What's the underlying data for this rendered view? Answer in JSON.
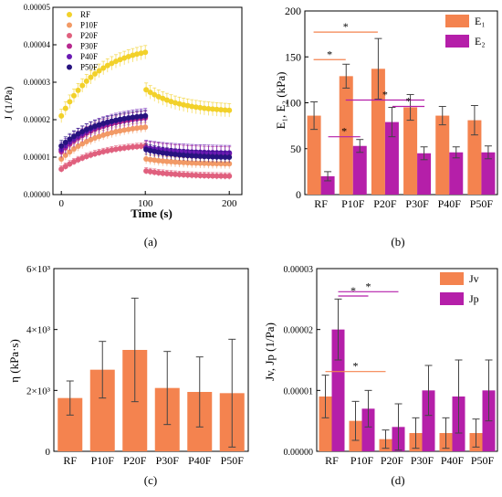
{
  "figure": {
    "panels": [
      {
        "id": "a",
        "caption": "(a)"
      },
      {
        "id": "b",
        "caption": "(b)"
      },
      {
        "id": "c",
        "caption": "(c)"
      },
      {
        "id": "d",
        "caption": "(d)"
      }
    ]
  },
  "chart_data": [
    {
      "panel": "a",
      "type": "scatter",
      "xlabel": "Time (s)",
      "ylabel": "J (1/Pa)",
      "xlim": [
        -10,
        215
      ],
      "ylim": [
        0,
        5e-05
      ],
      "xticks": [
        "0",
        "100",
        "200"
      ],
      "yticks": [
        "0.00000",
        "0.00001",
        "0.00002",
        "0.00003",
        "0.00004",
        "0.00005"
      ],
      "legend_position": "top-left",
      "grid": false,
      "series": [
        {
          "name": "RF",
          "color": "#f2d12a",
          "load_start": 2.1e-05,
          "load_end": 3.8e-05,
          "rec_start": 2.8e-05,
          "rec_end": 2.2e-05,
          "err": 1.8e-06
        },
        {
          "name": "P10F",
          "color": "#f29a66",
          "load_start": 9.5e-06,
          "load_end": 1.8e-05,
          "rec_start": 9.5e-06,
          "rec_end": 8.1e-06,
          "err": 1.3e-06
        },
        {
          "name": "P20F",
          "color": "#e0607e",
          "load_start": 6.8e-06,
          "load_end": 1.3e-05,
          "rec_start": 6.3e-06,
          "rec_end": 4.8e-06,
          "err": 9e-07
        },
        {
          "name": "P30F",
          "color": "#b7288f",
          "load_start": 1.15e-05,
          "load_end": 2.05e-05,
          "rec_start": 1.25e-05,
          "rec_end": 1.08e-05,
          "err": 1.8e-06
        },
        {
          "name": "P40F",
          "color": "#6a1ab3",
          "load_start": 1.2e-05,
          "load_end": 2.1e-05,
          "rec_start": 1.25e-05,
          "rec_end": 1.1e-05,
          "err": 2e-06
        },
        {
          "name": "P50F",
          "color": "#27137f",
          "load_start": 1.3e-05,
          "load_end": 2.1e-05,
          "rec_start": 1.2e-05,
          "rec_end": 9.8e-06,
          "err": 1.5e-06
        }
      ]
    },
    {
      "panel": "b",
      "type": "bar",
      "xlabel": "",
      "ylabel": "E₁, E₂ (kPa)",
      "ylim": [
        0,
        200
      ],
      "yticks": [
        "0",
        "50",
        "100",
        "150",
        "200"
      ],
      "categories": [
        "RF",
        "P10F",
        "P20F",
        "P30F",
        "P40F",
        "P50F"
      ],
      "legend_position": "top-right",
      "series": [
        {
          "name": "E₁",
          "color": "#f4834f",
          "values": [
            86,
            129,
            137,
            95,
            86,
            81
          ],
          "errors": [
            15,
            13,
            33,
            14,
            10,
            16
          ]
        },
        {
          "name": "E₂",
          "color": "#b51fa9",
          "values": [
            20,
            53,
            79,
            45,
            46,
            46
          ],
          "errors": [
            5,
            7,
            16,
            7,
            6,
            7
          ]
        }
      ],
      "significance": [
        "*",
        "*",
        "*",
        "*",
        "*"
      ]
    },
    {
      "panel": "c",
      "type": "bar",
      "xlabel": "",
      "ylabel": "η (kPa·s)",
      "ylim": [
        0,
        6000
      ],
      "yticks": [
        "0",
        "2×10³",
        "4×10³",
        "6×10³"
      ],
      "categories": [
        "RF",
        "P10F",
        "P20F",
        "P30F",
        "P40F",
        "P50F"
      ],
      "series": [
        {
          "name": "η",
          "color": "#f4834f",
          "values": [
            1750,
            2680,
            3330,
            2080,
            1950,
            1910
          ],
          "errors": [
            560,
            930,
            1700,
            1200,
            1150,
            1770
          ]
        }
      ]
    },
    {
      "panel": "d",
      "type": "bar",
      "xlabel": "",
      "ylabel": "Jv, Jp (1/Pa)",
      "ylim": [
        0,
        3e-05
      ],
      "yticks": [
        "0.00000",
        "0.00001",
        "0.00002",
        "0.00003"
      ],
      "categories": [
        "RF",
        "P10F",
        "P20F",
        "P30F",
        "P40F",
        "P50F"
      ],
      "legend_position": "top-right",
      "series": [
        {
          "name": "Jv",
          "color": "#f4834f",
          "values": [
            9e-06,
            5e-06,
            2e-06,
            3e-06,
            3e-06,
            3e-06
          ],
          "errors": [
            3.5e-06,
            3.2e-06,
            1.5e-06,
            2.5e-06,
            2.5e-06,
            2.3e-06
          ]
        },
        {
          "name": "Jp",
          "color": "#b51fa9",
          "values": [
            2e-05,
            7e-06,
            4e-06,
            1e-05,
            9e-06,
            1e-05
          ],
          "errors": [
            5e-06,
            3e-06,
            3.8e-06,
            4.1e-06,
            6e-06,
            5e-06
          ]
        }
      ],
      "significance": [
        "*",
        "*",
        "*"
      ]
    }
  ]
}
